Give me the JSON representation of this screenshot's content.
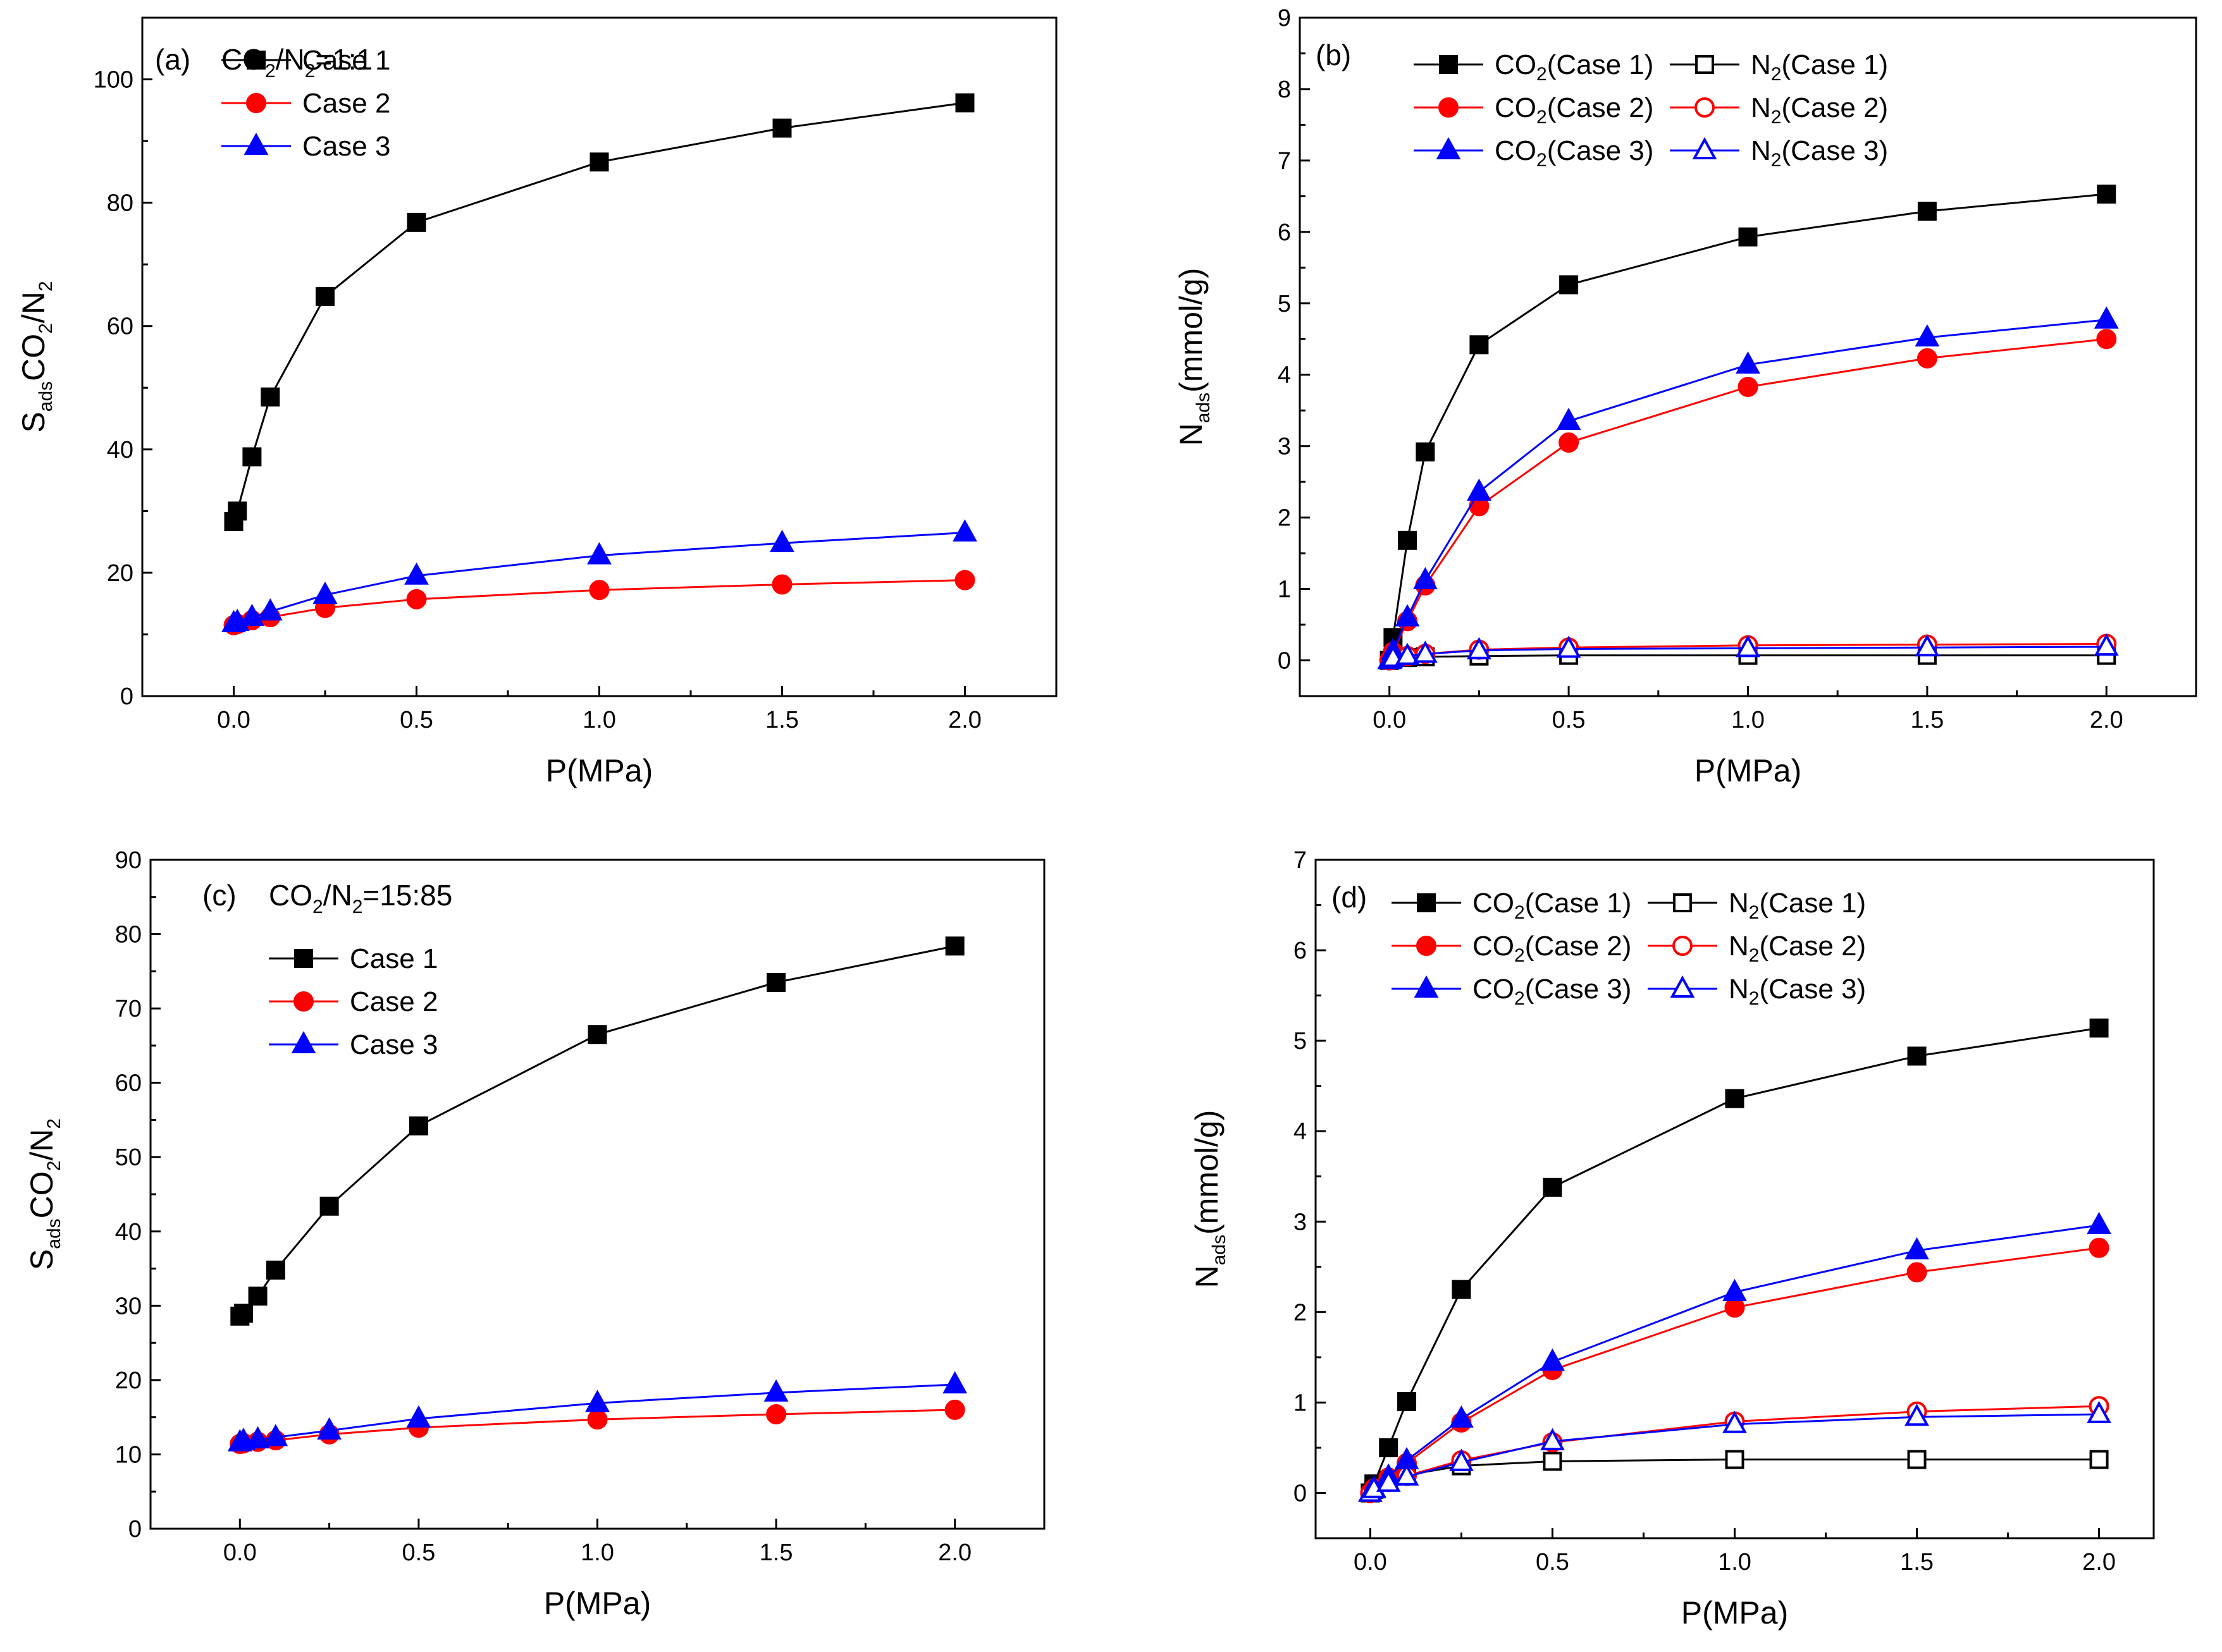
{
  "figure": {
    "background": "#ffffff"
  },
  "colors": {
    "Case 1": "#000000",
    "Case 2": "#ff0000",
    "Case 3": "#0000ff"
  },
  "chart_data": [
    {
      "panel": "(a)",
      "type": "line",
      "annotation": {
        "base": "CO",
        "sub1": "2",
        "mid": "/N",
        "sub2": "2",
        "tail": "=1:1"
      },
      "xlabel": "P(MPa)",
      "ylabel": {
        "main1": "S",
        "sub1": "ads",
        "main2": "CO",
        "sub2": "2",
        "main3": "/N",
        "sub3": "2"
      },
      "xlim": [
        -0.25,
        2.25
      ],
      "ylim": [
        0,
        110
      ],
      "xticks": [
        0.0,
        0.5,
        1.0,
        1.5,
        2.0
      ],
      "xtick_labels": [
        "0.0",
        "0.5",
        "1.0",
        "1.5",
        "2.0"
      ],
      "yticks": [
        0,
        20,
        40,
        60,
        80,
        100
      ],
      "ytick_labels": [
        "0",
        "20",
        "40",
        "60",
        "80",
        "100"
      ],
      "legend_position": "top-left",
      "series": [
        {
          "name": "Case 1",
          "legend_label": "Case 1",
          "marker": "square",
          "filled": true,
          "color": "#000000",
          "x": [
            0.0,
            0.01,
            0.05,
            0.1,
            0.25,
            0.5,
            1.0,
            1.5,
            2.0
          ],
          "y": [
            28.3,
            30.0,
            38.8,
            48.5,
            64.8,
            76.8,
            86.6,
            92.1,
            96.2
          ]
        },
        {
          "name": "Case 2",
          "legend_label": "Case 2",
          "marker": "circle",
          "filled": true,
          "color": "#ff0000",
          "x": [
            0.0,
            0.01,
            0.05,
            0.1,
            0.25,
            0.5,
            1.0,
            1.5,
            2.0
          ],
          "y": [
            11.5,
            11.7,
            12.3,
            12.8,
            14.3,
            15.7,
            17.2,
            18.1,
            18.8
          ]
        },
        {
          "name": "Case 3",
          "legend_label": "Case 3",
          "marker": "triangle",
          "filled": true,
          "color": "#0000ff",
          "x": [
            0.0,
            0.01,
            0.05,
            0.1,
            0.25,
            0.5,
            1.0,
            1.5,
            2.0
          ],
          "y": [
            11.8,
            12.0,
            12.8,
            13.7,
            16.4,
            19.5,
            22.8,
            24.8,
            26.5
          ]
        }
      ]
    },
    {
      "panel": "(b)",
      "type": "line",
      "xlabel": "P(MPa)",
      "ylabel": {
        "main1": "N",
        "sub1": "ads",
        "main2": "(mmol/g)"
      },
      "xlim": [
        -0.25,
        2.25
      ],
      "ylim": [
        -0.5,
        9
      ],
      "xticks": [
        0.0,
        0.5,
        1.0,
        1.5,
        2.0
      ],
      "xtick_labels": [
        "0.0",
        "0.5",
        "1.0",
        "1.5",
        "2.0"
      ],
      "yticks": [
        0,
        1,
        2,
        3,
        4,
        5,
        6,
        7,
        8,
        9
      ],
      "ytick_labels": [
        "0",
        "1",
        "2",
        "3",
        "4",
        "5",
        "6",
        "7",
        "8",
        "9"
      ],
      "legend_position": "top-left",
      "series": [
        {
          "name": "CO2(Case 1)",
          "legend_base": "CO",
          "legend_sub": "2",
          "legend_tail": "(Case 1)",
          "marker": "square",
          "filled": true,
          "color": "#000000",
          "x": [
            0.0,
            0.01,
            0.05,
            0.1,
            0.25,
            0.5,
            1.0,
            1.5,
            2.0
          ],
          "y": [
            0.0,
            0.32,
            1.68,
            2.92,
            4.42,
            5.26,
            5.93,
            6.29,
            6.53
          ]
        },
        {
          "name": "N2(Case 1)",
          "legend_base": "N",
          "legend_sub": "2",
          "legend_tail": "(Case 1)",
          "marker": "square",
          "filled": false,
          "color": "#000000",
          "x": [
            0.0,
            0.01,
            0.05,
            0.1,
            0.25,
            0.5,
            1.0,
            1.5,
            2.0
          ],
          "y": [
            0.0,
            0.02,
            0.04,
            0.05,
            0.06,
            0.07,
            0.07,
            0.07,
            0.07
          ]
        },
        {
          "name": "CO2(Case 2)",
          "legend_base": "CO",
          "legend_sub": "2",
          "legend_tail": "(Case 2)",
          "marker": "circle",
          "filled": true,
          "color": "#ff0000",
          "x": [
            0.0,
            0.01,
            0.05,
            0.1,
            0.25,
            0.5,
            1.0,
            1.5,
            2.0
          ],
          "y": [
            0.0,
            0.12,
            0.55,
            1.05,
            2.16,
            3.05,
            3.83,
            4.23,
            4.5
          ]
        },
        {
          "name": "N2(Case 2)",
          "legend_base": "N",
          "legend_sub": "2",
          "legend_tail": "(Case 2)",
          "marker": "circle",
          "filled": false,
          "color": "#ff0000",
          "x": [
            0.0,
            0.01,
            0.05,
            0.1,
            0.25,
            0.5,
            1.0,
            1.5,
            2.0
          ],
          "y": [
            0.0,
            0.03,
            0.06,
            0.09,
            0.15,
            0.18,
            0.21,
            0.22,
            0.23
          ]
        },
        {
          "name": "CO2(Case 3)",
          "legend_base": "CO",
          "legend_sub": "2",
          "legend_tail": "(Case 3)",
          "marker": "triangle",
          "filled": true,
          "color": "#0000ff",
          "x": [
            0.0,
            0.01,
            0.05,
            0.1,
            0.25,
            0.5,
            1.0,
            1.5,
            2.0
          ],
          "y": [
            0.0,
            0.13,
            0.6,
            1.12,
            2.36,
            3.35,
            4.14,
            4.52,
            4.77
          ]
        },
        {
          "name": "N2(Case 3)",
          "legend_base": "N",
          "legend_sub": "2",
          "legend_tail": "(Case 3)",
          "marker": "triangle",
          "filled": false,
          "color": "#0000ff",
          "x": [
            0.0,
            0.01,
            0.05,
            0.1,
            0.25,
            0.5,
            1.0,
            1.5,
            2.0
          ],
          "y": [
            0.0,
            0.03,
            0.06,
            0.09,
            0.14,
            0.16,
            0.17,
            0.18,
            0.19
          ]
        }
      ]
    },
    {
      "panel": "(c)",
      "type": "line",
      "annotation": {
        "base": "CO",
        "sub1": "2",
        "mid": "/N",
        "sub2": "2",
        "tail": "=15:85"
      },
      "xlabel": "P(MPa)",
      "ylabel": {
        "main1": "S",
        "sub1": "ads",
        "main2": "CO",
        "sub2": "2",
        "main3": "/N",
        "sub3": "2"
      },
      "xlim": [
        -0.25,
        2.25
      ],
      "ylim": [
        0,
        90
      ],
      "xticks": [
        0.0,
        0.5,
        1.0,
        1.5,
        2.0
      ],
      "xtick_labels": [
        "0.0",
        "0.5",
        "1.0",
        "1.5",
        "2.0"
      ],
      "yticks": [
        0,
        10,
        20,
        30,
        40,
        50,
        60,
        70,
        80,
        90
      ],
      "ytick_labels": [
        "0",
        "10",
        "20",
        "30",
        "40",
        "50",
        "60",
        "70",
        "80",
        "90"
      ],
      "legend_position": "top-left",
      "series": [
        {
          "name": "Case 1",
          "legend_label": "Case 1",
          "marker": "square",
          "filled": true,
          "color": "#000000",
          "x": [
            0.0,
            0.01,
            0.05,
            0.1,
            0.25,
            0.5,
            1.0,
            1.5,
            2.0
          ],
          "y": [
            28.6,
            29.0,
            31.3,
            34.8,
            43.4,
            54.2,
            66.5,
            73.5,
            78.4
          ]
        },
        {
          "name": "Case 2",
          "legend_label": "Case 2",
          "marker": "circle",
          "filled": true,
          "color": "#ff0000",
          "x": [
            0.0,
            0.01,
            0.05,
            0.1,
            0.25,
            0.5,
            1.0,
            1.5,
            2.0
          ],
          "y": [
            11.4,
            11.5,
            11.7,
            11.9,
            12.7,
            13.6,
            14.7,
            15.4,
            16.0
          ]
        },
        {
          "name": "Case 3",
          "legend_label": "Case 3",
          "marker": "triangle",
          "filled": true,
          "color": "#0000ff",
          "x": [
            0.0,
            0.01,
            0.05,
            0.1,
            0.25,
            0.5,
            1.0,
            1.5,
            2.0
          ],
          "y": [
            11.6,
            11.8,
            12.0,
            12.3,
            13.2,
            14.8,
            16.9,
            18.3,
            19.4
          ]
        }
      ]
    },
    {
      "panel": "(d)",
      "type": "line",
      "xlabel": "P(MPa)",
      "ylabel": {
        "main1": "N",
        "sub1": "ads",
        "main2": "(mmol/g)"
      },
      "xlim": [
        -0.15,
        2.15
      ],
      "ylim": [
        -0.5,
        7
      ],
      "xticks": [
        0.0,
        0.5,
        1.0,
        1.5,
        2.0
      ],
      "xtick_labels": [
        "0.0",
        "0.5",
        "1.0",
        "1.5",
        "2.0"
      ],
      "yticks": [
        0,
        1,
        2,
        3,
        4,
        5,
        6,
        7
      ],
      "ytick_labels": [
        "0",
        "1",
        "2",
        "3",
        "4",
        "5",
        "6",
        "7"
      ],
      "legend_position": "top-left",
      "series": [
        {
          "name": "CO2(Case 1)",
          "legend_base": "CO",
          "legend_sub": "2",
          "legend_tail": "(Case 1)",
          "marker": "square",
          "filled": true,
          "color": "#000000",
          "x": [
            0.0,
            0.01,
            0.05,
            0.1,
            0.25,
            0.5,
            1.0,
            1.5,
            2.0
          ],
          "y": [
            0.0,
            0.1,
            0.5,
            1.01,
            2.25,
            3.38,
            4.36,
            4.83,
            5.14
          ]
        },
        {
          "name": "N2(Case 1)",
          "legend_base": "N",
          "legend_sub": "2",
          "legend_tail": "(Case 1)",
          "marker": "square",
          "filled": false,
          "color": "#000000",
          "x": [
            0.0,
            0.01,
            0.05,
            0.1,
            0.25,
            0.5,
            1.0,
            1.5,
            2.0
          ],
          "y": [
            0.0,
            0.04,
            0.14,
            0.2,
            0.3,
            0.35,
            0.37,
            0.37,
            0.37
          ]
        },
        {
          "name": "CO2(Case 2)",
          "legend_base": "CO",
          "legend_sub": "2",
          "legend_tail": "(Case 2)",
          "marker": "circle",
          "filled": true,
          "color": "#ff0000",
          "x": [
            0.0,
            0.01,
            0.05,
            0.1,
            0.25,
            0.5,
            1.0,
            1.5,
            2.0
          ],
          "y": [
            0.0,
            0.05,
            0.17,
            0.33,
            0.78,
            1.36,
            2.05,
            2.44,
            2.71
          ]
        },
        {
          "name": "N2(Case 2)",
          "legend_base": "N",
          "legend_sub": "2",
          "legend_tail": "(Case 2)",
          "marker": "circle",
          "filled": false,
          "color": "#ff0000",
          "x": [
            0.0,
            0.01,
            0.05,
            0.1,
            0.25,
            0.5,
            1.0,
            1.5,
            2.0
          ],
          "y": [
            0.0,
            0.04,
            0.12,
            0.19,
            0.36,
            0.56,
            0.79,
            0.9,
            0.96
          ]
        },
        {
          "name": "CO2(Case 3)",
          "legend_base": "CO",
          "legend_sub": "2",
          "legend_tail": "(Case 3)",
          "marker": "triangle",
          "filled": true,
          "color": "#0000ff",
          "x": [
            0.0,
            0.01,
            0.05,
            0.1,
            0.25,
            0.5,
            1.0,
            1.5,
            2.0
          ],
          "y": [
            0.0,
            0.05,
            0.18,
            0.36,
            0.82,
            1.45,
            2.22,
            2.68,
            2.96
          ]
        },
        {
          "name": "N2(Case 3)",
          "legend_base": "N",
          "legend_sub": "2",
          "legend_tail": "(Case 3)",
          "marker": "triangle",
          "filled": false,
          "color": "#0000ff",
          "x": [
            0.0,
            0.01,
            0.05,
            0.1,
            0.25,
            0.5,
            1.0,
            1.5,
            2.0
          ],
          "y": [
            0.0,
            0.04,
            0.11,
            0.18,
            0.34,
            0.57,
            0.76,
            0.84,
            0.87
          ]
        }
      ]
    }
  ]
}
